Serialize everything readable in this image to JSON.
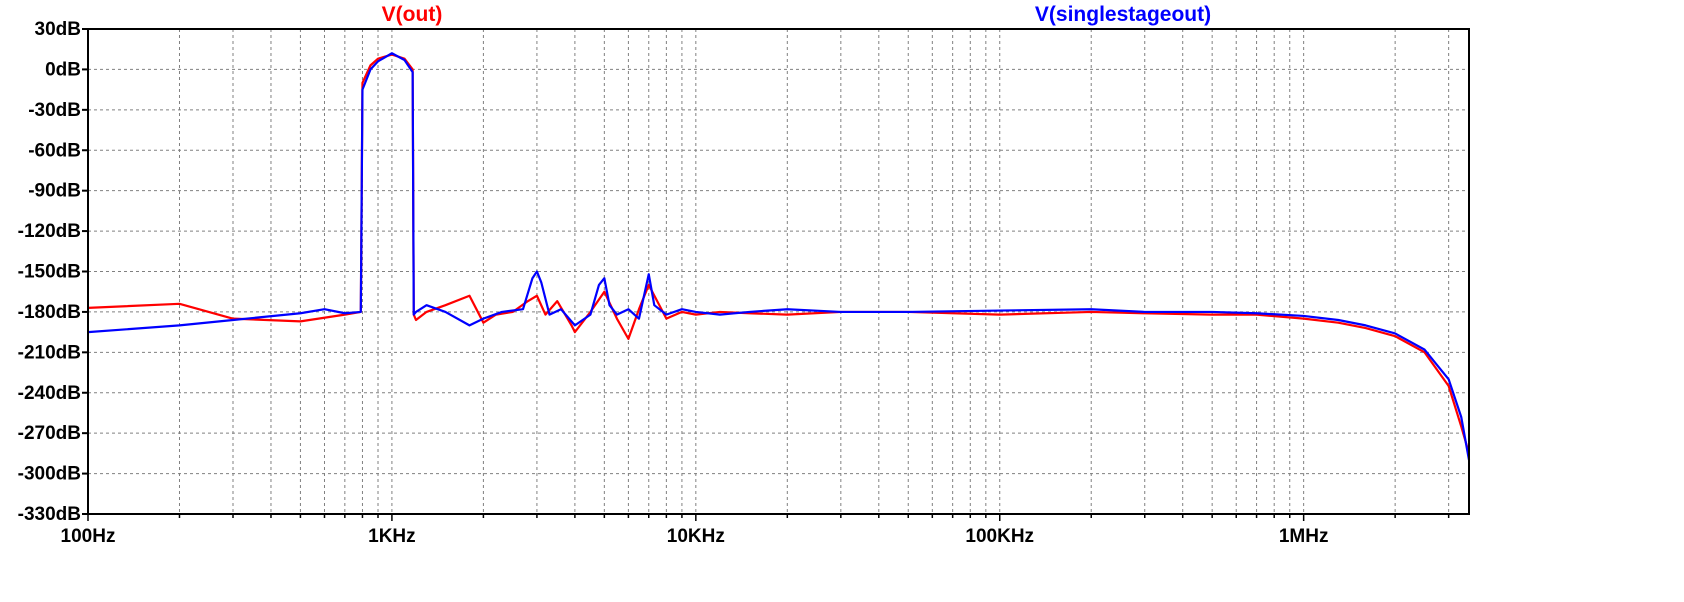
{
  "chart_data": {
    "type": "line",
    "title": "",
    "xlabel": "",
    "ylabel": "",
    "x_scale": "log",
    "x_unit": "Hz",
    "xlim": [
      100,
      3500000
    ],
    "ylim": [
      -330,
      30
    ],
    "grid": true,
    "x_tick_values": [
      100,
      1000,
      10000,
      100000,
      1000000
    ],
    "x_tick_labels": [
      "100Hz",
      "1KHz",
      "10KHz",
      "100KHz",
      "1MHz"
    ],
    "y_tick_values": [
      30,
      0,
      -30,
      -60,
      -90,
      -120,
      -150,
      -180,
      -210,
      -240,
      -270,
      -300,
      -330
    ],
    "y_tick_labels": [
      "30dB",
      "0dB",
      "-30dB",
      "-60dB",
      "-90dB",
      "-120dB",
      "-150dB",
      "-180dB",
      "-210dB",
      "-240dB",
      "-270dB",
      "-300dB",
      "-330dB"
    ],
    "legend_position": "top",
    "series": [
      {
        "name": "V(out)",
        "color": "#ff0000",
        "x": [
          100,
          200,
          300,
          500,
          700,
          790,
          800,
          850,
          900,
          1000,
          1100,
          1170,
          1180,
          1200,
          1300,
          1500,
          1800,
          2000,
          2200,
          2500,
          2800,
          3000,
          3200,
          3500,
          3900,
          4000,
          4500,
          5000,
          5500,
          6000,
          6500,
          7000,
          8000,
          9000,
          10000,
          12000,
          15000,
          20000,
          30000,
          50000,
          100000,
          200000,
          300000,
          500000,
          700000,
          1000000,
          1300000,
          1600000,
          2000000,
          2500000,
          3000000,
          3300000,
          3500000
        ],
        "y": [
          -177,
          -174,
          -185,
          -187,
          -182,
          -180,
          -10,
          3,
          8,
          11,
          8,
          0,
          -182,
          -186,
          -180,
          -175,
          -168,
          -188,
          -182,
          -180,
          -172,
          -168,
          -182,
          -172,
          -190,
          -195,
          -180,
          -165,
          -185,
          -200,
          -178,
          -160,
          -185,
          -180,
          -182,
          -180,
          -181,
          -182,
          -180,
          -180,
          -182,
          -180,
          -181,
          -182,
          -182,
          -185,
          -188,
          -192,
          -198,
          -210,
          -235,
          -265,
          -285
        ]
      },
      {
        "name": "V(singlestageout)",
        "color": "#0000ff",
        "x": [
          100,
          200,
          300,
          500,
          600,
          700,
          790,
          800,
          850,
          900,
          1000,
          1100,
          1170,
          1180,
          1200,
          1300,
          1500,
          1800,
          2000,
          2300,
          2700,
          2900,
          3000,
          3100,
          3300,
          3600,
          4000,
          4500,
          4800,
          5000,
          5200,
          5500,
          6000,
          6500,
          7000,
          7300,
          8000,
          9000,
          10000,
          12000,
          15000,
          20000,
          30000,
          50000,
          100000,
          200000,
          300000,
          500000,
          700000,
          1000000,
          1300000,
          1600000,
          2000000,
          2500000,
          3000000,
          3300000,
          3500000
        ],
        "y": [
          -195,
          -190,
          -186,
          -181,
          -178,
          -181,
          -180,
          -15,
          0,
          6,
          12,
          7,
          -2,
          -182,
          -180,
          -175,
          -180,
          -190,
          -185,
          -180,
          -178,
          -155,
          -150,
          -158,
          -182,
          -178,
          -190,
          -182,
          -160,
          -155,
          -175,
          -182,
          -178,
          -185,
          -152,
          -175,
          -182,
          -178,
          -180,
          -182,
          -180,
          -178,
          -180,
          -180,
          -179,
          -178,
          -180,
          -180,
          -181,
          -183,
          -186,
          -190,
          -196,
          -208,
          -230,
          -258,
          -290
        ]
      }
    ]
  }
}
